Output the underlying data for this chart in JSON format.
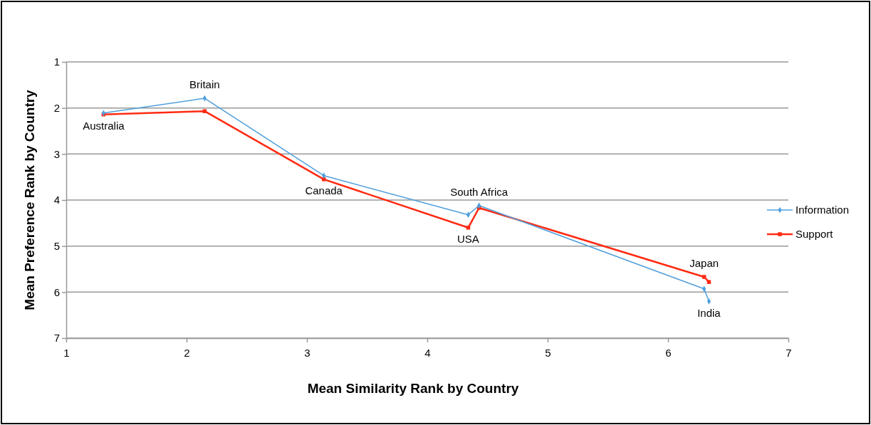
{
  "chart_data": {
    "type": "line",
    "xlabel": "Mean Similarity Rank by Country",
    "ylabel": "Mean Preference Rank by Country",
    "xlim": [
      1,
      7
    ],
    "xticks": [
      1,
      2,
      3,
      4,
      5,
      6,
      7
    ],
    "ylim": [
      7,
      1
    ],
    "yticks": [
      1,
      2,
      3,
      4,
      5,
      6,
      7
    ],
    "grid": "y",
    "legend": "right",
    "series": [
      {
        "name": "Information",
        "color": "#4f9fdc",
        "marker": "diamond",
        "x": [
          1.31,
          2.15,
          3.14,
          4.34,
          4.43,
          6.3,
          6.34
        ],
        "values": [
          2.11,
          1.79,
          3.47,
          4.32,
          4.12,
          5.93,
          6.2
        ]
      },
      {
        "name": "Support",
        "color": "#ff2a12",
        "marker": "square",
        "x": [
          1.31,
          2.15,
          3.14,
          4.34,
          4.43,
          6.3,
          6.34
        ],
        "values": [
          2.14,
          2.07,
          3.55,
          4.6,
          4.17,
          5.67,
          5.78
        ]
      }
    ],
    "annotations": [
      {
        "text": "Australia",
        "x": 1.31,
        "y": 2.14
      },
      {
        "text": "Britain",
        "x": 2.15,
        "y": 1.79
      },
      {
        "text": "Canada",
        "x": 3.14,
        "y": 3.55
      },
      {
        "text": "USA",
        "x": 4.34,
        "y": 4.6
      },
      {
        "text": "South Africa",
        "x": 4.43,
        "y": 4.12
      },
      {
        "text": "Japan",
        "x": 6.3,
        "y": 5.67
      },
      {
        "text": "India",
        "x": 6.34,
        "y": 6.2
      }
    ]
  }
}
